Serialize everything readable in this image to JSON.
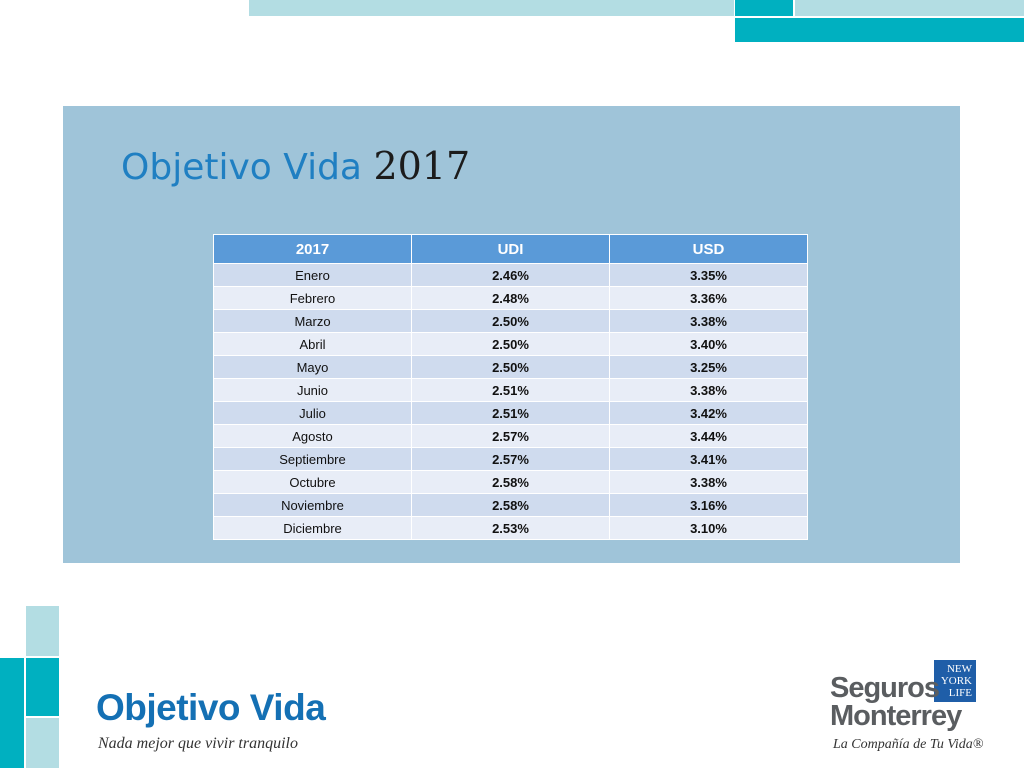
{
  "slide": {
    "title": "Objetivo Vida",
    "title_year": "2017"
  },
  "table": {
    "headers": [
      "2017",
      "UDI",
      "USD"
    ],
    "rows": [
      [
        "Enero",
        "2.46%",
        "3.35%"
      ],
      [
        "Febrero",
        "2.48%",
        "3.36%"
      ],
      [
        "Marzo",
        "2.50%",
        "3.38%"
      ],
      [
        "Abril",
        "2.50%",
        "3.40%"
      ],
      [
        "Mayo",
        "2.50%",
        "3.25%"
      ],
      [
        "Junio",
        "2.51%",
        "3.38%"
      ],
      [
        "Julio",
        "2.51%",
        "3.42%"
      ],
      [
        "Agosto",
        "2.57%",
        "3.44%"
      ],
      [
        "Septiembre",
        "2.57%",
        "3.41%"
      ],
      [
        "Octubre",
        "2.58%",
        "3.38%"
      ],
      [
        "Noviembre",
        "2.58%",
        "3.16%"
      ],
      [
        "Diciembre",
        "2.53%",
        "3.10%"
      ]
    ]
  },
  "footer": {
    "brand_name": "Objetivo Vida",
    "brand_tagline": "Nada mejor que vivir tranquilo",
    "company_logo": {
      "nyl_line1": "NEW",
      "nyl_line2": "YORK",
      "nyl_line3": "LIFE",
      "name_line1": "Seguros",
      "name_line2": "Monterrey",
      "tagline": "La Compañía de Tu Vida®"
    }
  },
  "colors": {
    "panel_background": "#9fc4d9",
    "title_blue": "#1f7fc2",
    "header_blue": "#5a9ad8",
    "row_odd": "#cfdbee",
    "row_even": "#e8edf7",
    "brand_blue": "#1470b4",
    "teal": "#00b0c0",
    "light_teal": "#b3dde3"
  }
}
